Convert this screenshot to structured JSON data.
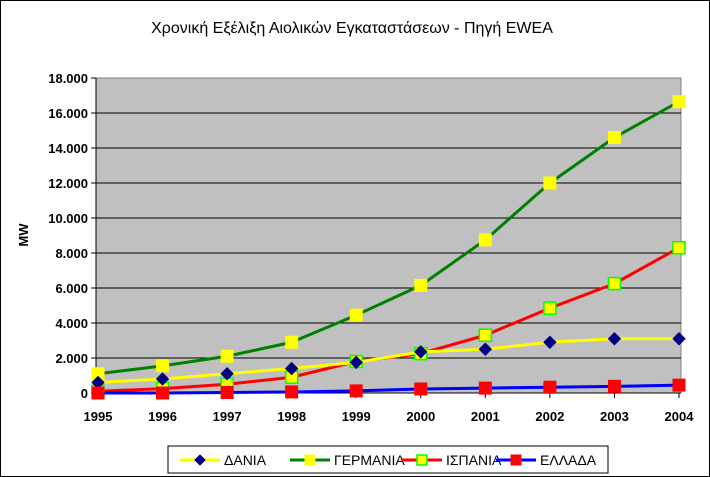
{
  "chart_data": {
    "type": "line",
    "title": "Χρονική Εξέλιξη Αιολικών Εγκαταστάσεων - Πηγή EWEA",
    "xlabel": "",
    "ylabel": "MW",
    "categories": [
      "1995",
      "1996",
      "1997",
      "1998",
      "1999",
      "2000",
      "2001",
      "2002",
      "2003",
      "2004"
    ],
    "ylim": [
      0,
      18000
    ],
    "yticks": [
      0,
      2000,
      4000,
      6000,
      8000,
      10000,
      12000,
      14000,
      16000,
      18000
    ],
    "ytick_labels": [
      "0",
      "2.000",
      "4.000",
      "6.000",
      "8.000",
      "10.000",
      "12.000",
      "14.000",
      "16.000",
      "18.000"
    ],
    "grid": true,
    "plot_background": "#C0C0C0",
    "legend_position": "bottom",
    "series": [
      {
        "name": "ΔΑΝΙΑ",
        "line_color": "#FFFF00",
        "marker": "diamond",
        "marker_color": "#000080",
        "values": [
          600,
          800,
          1100,
          1400,
          1750,
          2350,
          2500,
          2900,
          3100,
          3100
        ]
      },
      {
        "name": "ΓΕΡΜΑΝΙΑ",
        "line_color": "#008000",
        "marker": "square",
        "marker_color": "#FFFF00",
        "values": [
          1100,
          1550,
          2100,
          2900,
          4450,
          6150,
          8750,
          12000,
          14600,
          16650
        ]
      },
      {
        "name": "ΙΣΠΑΝΙΑ",
        "line_color": "#FF0000",
        "marker": "square",
        "marker_color": "#FFFF00",
        "marker_border": "#00FF00",
        "values": [
          100,
          250,
          500,
          900,
          1800,
          2250,
          3300,
          4850,
          6250,
          8300
        ]
      },
      {
        "name": "ΕΛΛΑΔΑ",
        "line_color": "#0000FF",
        "marker": "square",
        "marker_color": "#FF0000",
        "values": [
          0,
          0,
          30,
          60,
          120,
          230,
          280,
          330,
          380,
          450
        ]
      }
    ]
  }
}
